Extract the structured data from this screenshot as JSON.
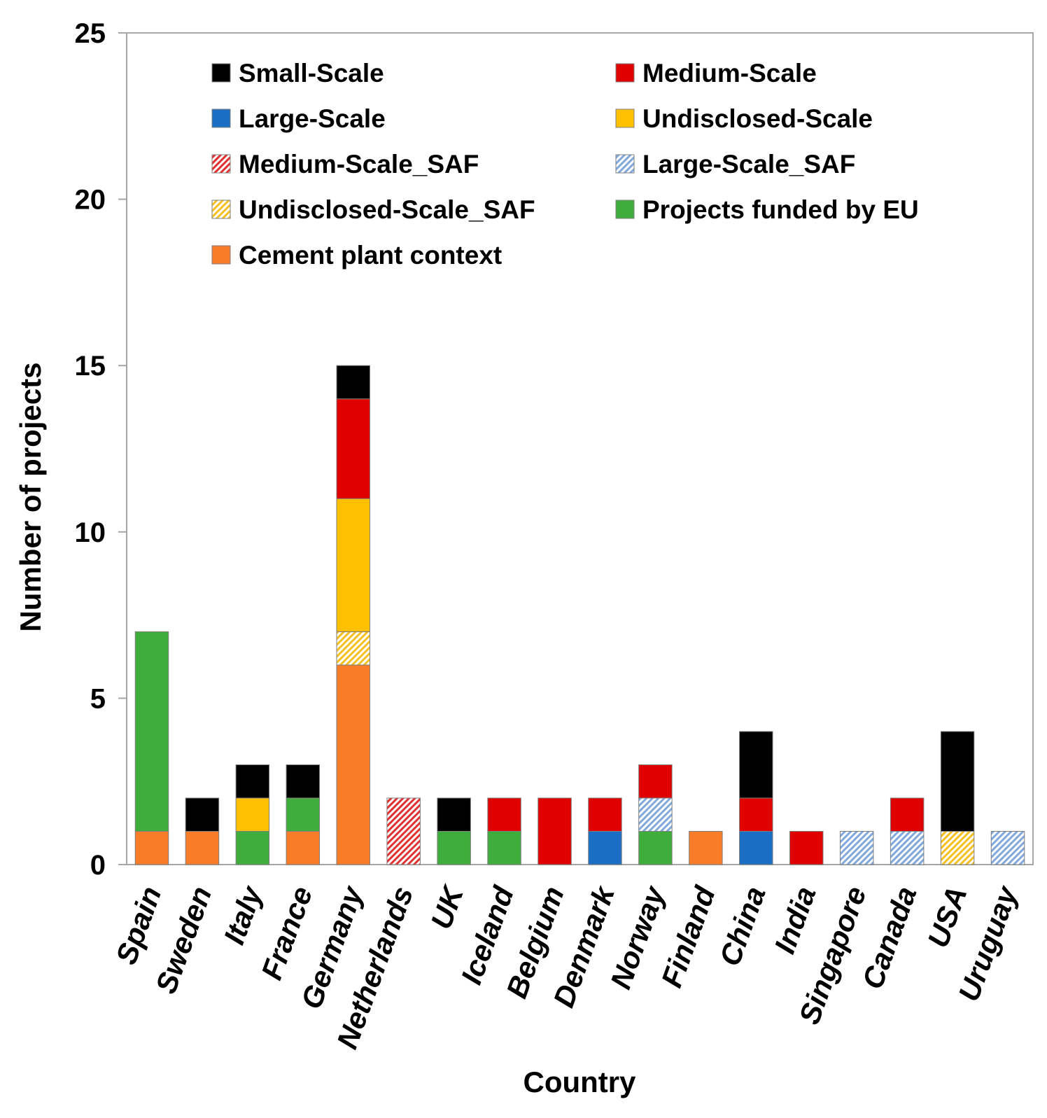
{
  "chart_data": {
    "type": "bar",
    "stacked": true,
    "title": "",
    "xlabel": "Country",
    "ylabel": "Number of projects",
    "ylim": [
      0,
      25
    ],
    "yticks": [
      0,
      5,
      10,
      15,
      20,
      25
    ],
    "grid": false,
    "legend_position": "top",
    "categories": [
      "Spain",
      "Sweden",
      "Italy",
      "France",
      "Germany",
      "Netherlands",
      "UK",
      "Iceland",
      "Belgium",
      "Denmark",
      "Norway",
      "Finland",
      "China",
      "India",
      "Singapore",
      "Canada",
      "USA",
      "Uruguay"
    ],
    "series": [
      {
        "name": "Cement plant context",
        "color": "#F97D28",
        "pattern": "solid",
        "values": [
          1,
          1,
          0,
          1,
          6,
          0,
          0,
          0,
          0,
          0,
          0,
          1,
          0,
          0,
          0,
          0,
          0,
          0
        ]
      },
      {
        "name": "Projects funded by EU",
        "color": "#3EAD3C",
        "pattern": "solid",
        "values": [
          6,
          0,
          1,
          1,
          0,
          0,
          1,
          1,
          0,
          0,
          1,
          0,
          0,
          0,
          0,
          0,
          0,
          0
        ]
      },
      {
        "name": "Large-Scale",
        "color": "#1A6FC4",
        "pattern": "solid",
        "values": [
          0,
          0,
          0,
          0,
          0,
          0,
          0,
          0,
          0,
          1,
          0,
          0,
          1,
          0,
          0,
          0,
          0,
          0
        ]
      },
      {
        "name": "Large-Scale_SAF",
        "color": "#7FA8DC",
        "pattern": "hatch",
        "values": [
          0,
          0,
          0,
          0,
          0,
          0,
          0,
          0,
          0,
          0,
          1,
          0,
          0,
          0,
          1,
          1,
          0,
          1
        ]
      },
      {
        "name": "Medium-Scale_SAF",
        "color": "#E03030",
        "pattern": "hatch",
        "values": [
          0,
          0,
          0,
          0,
          0,
          2,
          0,
          0,
          0,
          0,
          0,
          0,
          0,
          0,
          0,
          0,
          0,
          0
        ]
      },
      {
        "name": "Undisclosed-Scale_SAF",
        "color": "#F3C020",
        "pattern": "hatch",
        "values": [
          0,
          0,
          0,
          0,
          1,
          0,
          0,
          0,
          0,
          0,
          0,
          0,
          0,
          0,
          0,
          0,
          1,
          0
        ]
      },
      {
        "name": "Undisclosed-Scale",
        "color": "#FFC000",
        "pattern": "solid",
        "values": [
          0,
          0,
          1,
          0,
          4,
          0,
          0,
          0,
          0,
          0,
          0,
          0,
          0,
          0,
          0,
          0,
          0,
          0
        ]
      },
      {
        "name": "Medium-Scale",
        "color": "#E00000",
        "pattern": "solid",
        "values": [
          0,
          0,
          0,
          0,
          3,
          0,
          0,
          1,
          2,
          1,
          1,
          0,
          1,
          1,
          0,
          1,
          0,
          0
        ]
      },
      {
        "name": "Small-Scale",
        "color": "#000000",
        "pattern": "solid",
        "values": [
          0,
          1,
          1,
          1,
          1,
          0,
          1,
          0,
          0,
          0,
          0,
          0,
          2,
          0,
          0,
          0,
          3,
          0
        ]
      }
    ],
    "legend": [
      "Small-Scale",
      "Medium-Scale",
      "Large-Scale",
      "Undisclosed-Scale",
      "Medium-Scale_SAF",
      "Large-Scale_SAF",
      "Undisclosed-Scale_SAF",
      "Projects funded by EU",
      "Cement plant context"
    ]
  }
}
